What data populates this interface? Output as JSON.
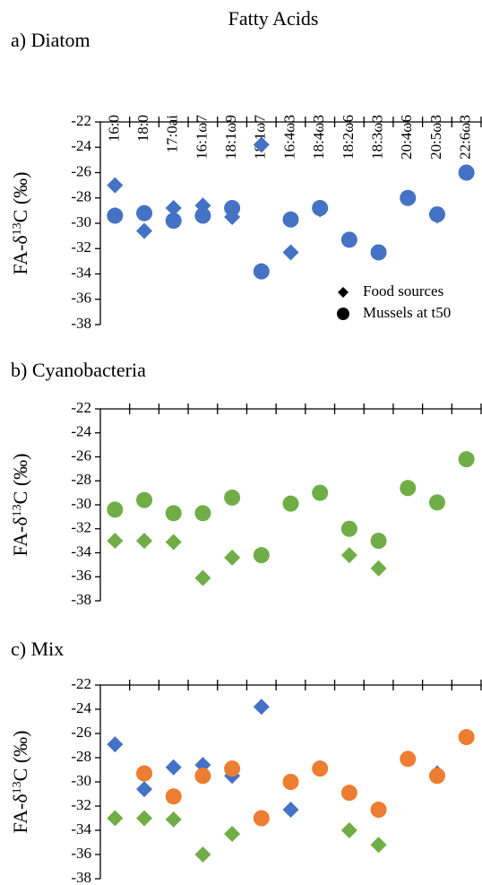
{
  "chart_data": [
    {
      "type": "scatter",
      "title": "a) Diatom",
      "x_label": "Fatty Acids",
      "categories": [
        "16:0",
        "18:0",
        "17:0ai",
        "16:1ω7",
        "18:1ω9",
        "18:1ω7",
        "16:4ω3",
        "18:4ω3",
        "18:2ω6",
        "18:3ω3",
        "20:4ω6",
        "20:5ω3",
        "22:6ω3"
      ],
      "y_label": [
        "FA-δ",
        "13",
        "C (‰)"
      ],
      "ylim": [
        -22,
        -38
      ],
      "yticks": [
        -22,
        -24,
        -26,
        -28,
        -30,
        -32,
        -34,
        -36,
        -38
      ],
      "legend": "lower right",
      "series": [
        {
          "name": "Food sources",
          "marker": "diamond",
          "color": "#4472c4",
          "values": [
            -27.0,
            -30.6,
            -28.8,
            -28.6,
            -29.5,
            -23.8,
            -32.3,
            -28.9,
            null,
            null,
            null,
            -29.4,
            null
          ]
        },
        {
          "name": "Mussels at t50",
          "marker": "circle",
          "color": "#4472c4",
          "values": [
            -29.4,
            -29.2,
            -29.8,
            -29.4,
            -28.8,
            -33.8,
            -29.7,
            -28.8,
            -31.3,
            -32.3,
            -28.0,
            -29.3,
            -26.0
          ]
        }
      ]
    },
    {
      "type": "scatter",
      "title": "b) Cyanobacteria",
      "y_label": [
        "FA-δ",
        "13",
        "C (‰)"
      ],
      "ylim": [
        -22,
        -38
      ],
      "yticks": [
        -22,
        -24,
        -26,
        -28,
        -30,
        -32,
        -34,
        -36,
        -38
      ],
      "series": [
        {
          "marker": "diamond",
          "color": "#70ad47",
          "values": [
            -33.0,
            -33.0,
            -33.1,
            -36.1,
            -34.4,
            null,
            null,
            null,
            -34.2,
            -35.3,
            null,
            null,
            null
          ]
        },
        {
          "marker": "circle",
          "color": "#70ad47",
          "values": [
            -30.4,
            -29.6,
            -30.7,
            -30.7,
            -29.4,
            -34.2,
            -29.9,
            -29.0,
            -32.0,
            -33.0,
            -28.6,
            -29.8,
            -26.2
          ]
        }
      ]
    },
    {
      "type": "scatter",
      "title": "c) Mix",
      "y_label": [
        "FA-δ",
        "13",
        "C (‰)"
      ],
      "ylim": [
        -22,
        -38
      ],
      "yticks": [
        -22,
        -24,
        -26,
        -28,
        -30,
        -32,
        -34,
        -36,
        -38
      ],
      "series": [
        {
          "marker": "diamond",
          "color": "#4472c4",
          "values": [
            -26.9,
            -30.6,
            -28.8,
            -28.6,
            -29.5,
            -23.8,
            -32.3,
            -28.9,
            null,
            null,
            null,
            -29.3,
            null
          ]
        },
        {
          "marker": "diamond",
          "color": "#70ad47",
          "values": [
            -33.0,
            -33.0,
            -33.1,
            -36.0,
            -34.3,
            null,
            null,
            null,
            -34.0,
            -35.2,
            null,
            null,
            null
          ]
        },
        {
          "marker": "circle",
          "color": "#ed7d31",
          "values": [
            null,
            -29.3,
            -31.2,
            -29.5,
            -28.9,
            -33.0,
            -30.0,
            -28.9,
            -30.9,
            -32.3,
            -28.1,
            -29.5,
            -26.3
          ]
        }
      ]
    }
  ]
}
